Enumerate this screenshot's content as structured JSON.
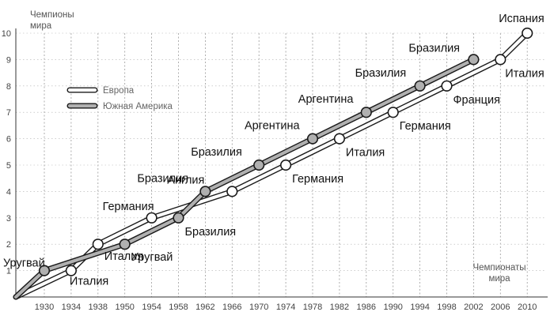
{
  "chart_data": {
    "type": "line",
    "ylabel": "Чемпионы мира",
    "xlabel": "Чемпионаты мира",
    "ylim": [
      0,
      10
    ],
    "yticks": [
      "1",
      "2",
      "3",
      "4",
      "5",
      "6",
      "7",
      "8",
      "9",
      "10"
    ],
    "xticks": [
      "1930",
      "1934",
      "1938",
      "1950",
      "1954",
      "1958",
      "1962",
      "1966",
      "1970",
      "1974",
      "1978",
      "1982",
      "1986",
      "1990",
      "1994",
      "1998",
      "2002",
      "2006",
      "2010"
    ],
    "legend_position": "top-left",
    "colors": {
      "europe": "#ffffff",
      "south_america": "#b0b0b0",
      "line": "#1a1a1a"
    },
    "series": [
      {
        "name": "Европа",
        "points": [
          {
            "x": "1934",
            "y": 1,
            "label": "Италия"
          },
          {
            "x": "1938",
            "y": 2,
            "label": "Италия"
          },
          {
            "x": "1954",
            "y": 3,
            "label": "Германия"
          },
          {
            "x": "1966",
            "y": 4,
            "label": "Англия"
          },
          {
            "x": "1974",
            "y": 5,
            "label": "Германия"
          },
          {
            "x": "1982",
            "y": 6,
            "label": "Италия"
          },
          {
            "x": "1990",
            "y": 7,
            "label": "Германия"
          },
          {
            "x": "1998",
            "y": 8,
            "label": "Франция"
          },
          {
            "x": "2006",
            "y": 9,
            "label": "Италия"
          },
          {
            "x": "2010",
            "y": 10,
            "label": "Испания"
          }
        ]
      },
      {
        "name": "Южная Америка",
        "points": [
          {
            "x": "1930",
            "y": 1,
            "label": "Уругвай"
          },
          {
            "x": "1950",
            "y": 2,
            "label": "Уругвай"
          },
          {
            "x": "1958",
            "y": 3,
            "label": "Бразилия"
          },
          {
            "x": "1962",
            "y": 4,
            "label": "Бразилия"
          },
          {
            "x": "1970",
            "y": 5,
            "label": "Бразилия"
          },
          {
            "x": "1978",
            "y": 6,
            "label": "Аргентина"
          },
          {
            "x": "1986",
            "y": 7,
            "label": "Аргентина"
          },
          {
            "x": "1994",
            "y": 8,
            "label": "Бразилия"
          },
          {
            "x": "2002",
            "y": 9,
            "label": "Бразилия"
          }
        ]
      }
    ]
  }
}
